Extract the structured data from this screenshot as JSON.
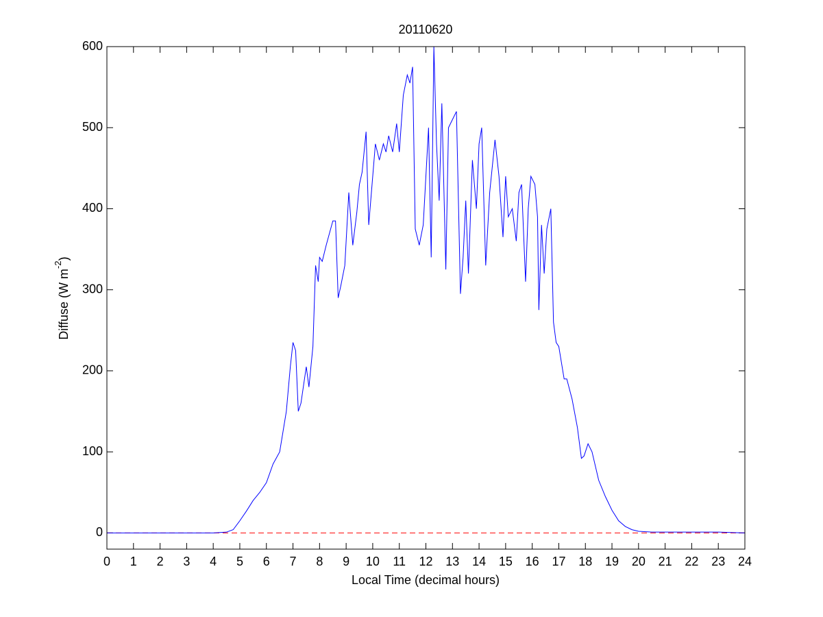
{
  "chart_data": {
    "type": "line",
    "title": "20110620",
    "xlabel": "Local Time (decimal hours)",
    "ylabel": {
      "text": "Diffuse (W m",
      "superscript": "-2",
      "suffix": ")"
    },
    "xlim": [
      0,
      24
    ],
    "xticks": [
      0,
      1,
      2,
      3,
      4,
      5,
      6,
      7,
      8,
      9,
      10,
      11,
      12,
      13,
      14,
      15,
      16,
      17,
      18,
      19,
      20,
      21,
      22,
      23,
      24
    ],
    "ylim": [
      -20,
      600
    ],
    "yticks": [
      0,
      100,
      200,
      300,
      400,
      500,
      600
    ],
    "reference_line": {
      "value": 0,
      "color": "#ff0000"
    },
    "x": [
      0,
      1,
      2,
      3,
      4,
      4.5,
      4.75,
      5,
      5.25,
      5.5,
      5.75,
      6,
      6.25,
      6.5,
      6.75,
      6.9,
      7,
      7.1,
      7.2,
      7.3,
      7.5,
      7.6,
      7.75,
      7.85,
      7.95,
      8,
      8.1,
      8.25,
      8.5,
      8.6,
      8.7,
      8.8,
      8.95,
      9.1,
      9.25,
      9.4,
      9.5,
      9.6,
      9.75,
      9.85,
      10,
      10.1,
      10.25,
      10.4,
      10.5,
      10.6,
      10.75,
      10.9,
      11,
      11.15,
      11.3,
      11.4,
      11.5,
      11.6,
      11.75,
      11.9,
      12,
      12.1,
      12.2,
      12.3,
      12.4,
      12.5,
      12.6,
      12.75,
      12.85,
      13,
      13.15,
      13.3,
      13.4,
      13.5,
      13.6,
      13.75,
      13.9,
      14,
      14.1,
      14.25,
      14.4,
      14.6,
      14.75,
      14.9,
      15,
      15.1,
      15.25,
      15.4,
      15.5,
      15.6,
      15.75,
      15.85,
      15.95,
      16.1,
      16.2,
      16.25,
      16.35,
      16.45,
      16.55,
      16.7,
      16.8,
      16.9,
      17,
      17.2,
      17.3,
      17.5,
      17.7,
      17.85,
      17.95,
      18.1,
      18.25,
      18.5,
      18.75,
      19,
      19.25,
      19.5,
      19.75,
      20,
      20.5,
      21,
      22,
      23,
      24
    ],
    "series": [
      {
        "color": "#0000ff",
        "values": [
          0,
          0,
          0,
          0,
          0,
          1,
          4,
          15,
          27,
          40,
          50,
          62,
          85,
          100,
          150,
          205,
          235,
          225,
          150,
          160,
          205,
          180,
          230,
          330,
          310,
          340,
          335,
          355,
          385,
          385,
          290,
          305,
          330,
          420,
          355,
          395,
          430,
          445,
          495,
          380,
          440,
          480,
          460,
          480,
          470,
          490,
          470,
          505,
          470,
          540,
          565,
          555,
          575,
          375,
          355,
          380,
          440,
          500,
          340,
          600,
          480,
          410,
          530,
          325,
          500,
          510,
          520,
          295,
          340,
          410,
          320,
          460,
          400,
          480,
          500,
          330,
          420,
          485,
          440,
          365,
          440,
          390,
          400,
          360,
          420,
          430,
          310,
          400,
          440,
          430,
          390,
          275,
          380,
          320,
          375,
          400,
          260,
          235,
          230,
          190,
          190,
          165,
          130,
          92,
          95,
          110,
          100,
          65,
          45,
          28,
          15,
          8,
          4,
          2,
          1,
          1,
          1,
          1,
          0
        ]
      }
    ]
  }
}
